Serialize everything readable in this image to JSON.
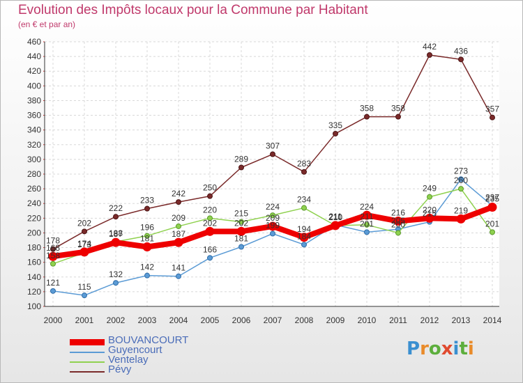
{
  "title": "Evolution des Impôts locaux pour la Commune par Habitant",
  "subtitle": "(en € et par an)",
  "logo": {
    "text": "Proxiti",
    "colors": [
      "#3a8fd0",
      "#e98b2a",
      "#5cae3c",
      "#e04a2f",
      "#3a8fd0",
      "#5cae3c",
      "#e98b2a"
    ]
  },
  "chart_data": {
    "type": "line",
    "x": [
      2000,
      2001,
      2002,
      2003,
      2004,
      2005,
      2006,
      2007,
      2008,
      2009,
      2010,
      2011,
      2012,
      2013,
      2014
    ],
    "ylim": [
      100,
      460
    ],
    "yticks": [
      100,
      120,
      140,
      160,
      180,
      200,
      220,
      240,
      260,
      280,
      300,
      320,
      340,
      360,
      380,
      400,
      420,
      440,
      460
    ],
    "grid": true,
    "legend_position": "bottom-left",
    "series": [
      {
        "name": "BOUVANCOURT",
        "color": "#ee0000",
        "values": [
          168,
          174,
          187,
          181,
          187,
          202,
          202,
          209,
          194,
          210,
          224,
          216,
          220,
          219,
          235
        ],
        "labels": [
          "168",
          "174",
          "187",
          "181",
          "187",
          "202",
          "202",
          "209",
          "194",
          "210",
          "224",
          "216",
          "220",
          "219",
          "235"
        ]
      },
      {
        "name": "Guyencourt",
        "color": "#5b9bd5",
        "values": [
          121,
          115,
          132,
          142,
          141,
          166,
          181,
          199,
          184,
          211,
          201,
          205,
          215,
          273,
          237
        ],
        "labels": [
          "121",
          "115",
          "132",
          "142",
          "141",
          "166",
          "181",
          "199",
          "184",
          "211",
          "201",
          "205",
          "215",
          "273",
          "237"
        ]
      },
      {
        "name": "Ventelay",
        "color": "#8fd14f",
        "values": [
          158,
          173,
          188,
          196,
          209,
          220,
          215,
          224,
          234,
          210,
          211,
          200,
          249,
          260,
          201
        ],
        "labels": [
          "158",
          "173",
          "188",
          "196",
          "209",
          "220",
          "215",
          "224",
          "234",
          "210",
          "211",
          "200",
          "249",
          "260",
          "201"
        ]
      },
      {
        "name": "Pévy",
        "color": "#7a2a2a",
        "values": [
          178,
          202,
          222,
          233,
          242,
          250,
          289,
          307,
          283,
          335,
          358,
          358,
          442,
          436,
          357
        ],
        "labels": [
          "178",
          "202",
          "222",
          "233",
          "242",
          "250",
          "289",
          "307",
          "283",
          "335",
          "358",
          "358",
          "442",
          "436",
          "357"
        ]
      }
    ]
  }
}
